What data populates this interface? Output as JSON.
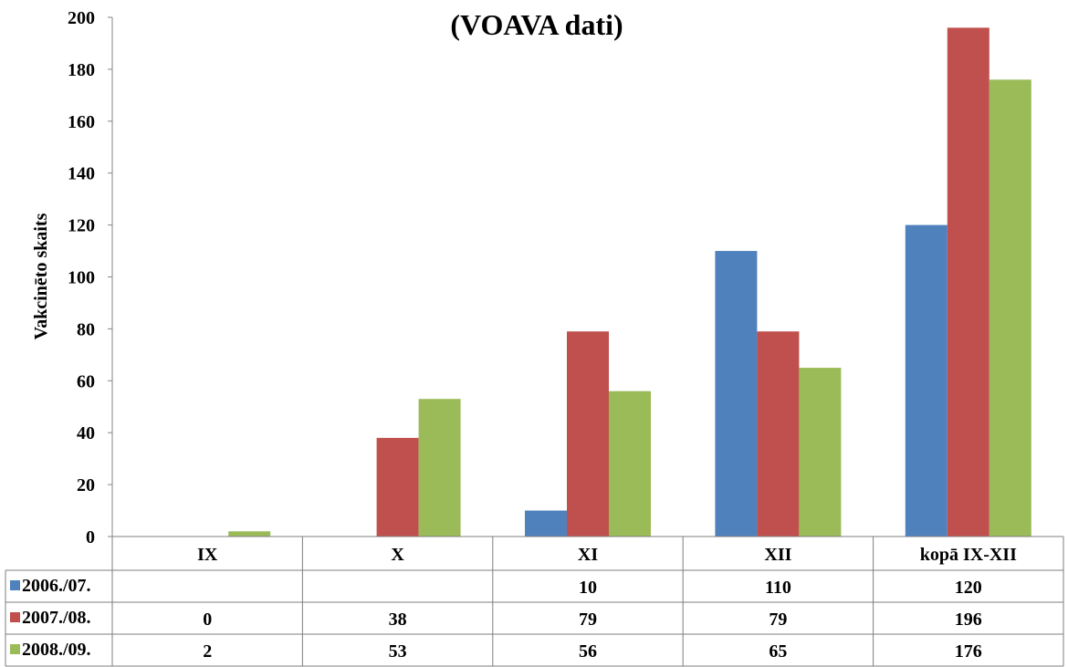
{
  "chart_data": {
    "type": "bar",
    "title_lines": [
      "",
      "(VOAVA dati)"
    ],
    "ylabel": "Vakcinēto skaits",
    "xlabel": "",
    "ylim": [
      0,
      200
    ],
    "yticks": [
      0,
      20,
      40,
      60,
      80,
      100,
      120,
      140,
      160,
      180,
      200
    ],
    "grid": false,
    "legend": "table-below",
    "categories": [
      "IX",
      "X",
      "XI",
      "XII",
      "kopā IX-XII"
    ],
    "series": [
      {
        "name": "2006./07.",
        "color": "#4f81bd",
        "values": [
          null,
          null,
          10,
          110,
          120
        ],
        "labels": [
          "",
          "",
          "10",
          "110",
          "120"
        ]
      },
      {
        "name": "2007./08.",
        "color": "#c0504d",
        "values": [
          0,
          38,
          79,
          79,
          196
        ],
        "labels": [
          "0",
          "38",
          "79",
          "79",
          "196"
        ]
      },
      {
        "name": "2008./09.",
        "color": "#9bbb59",
        "values": [
          2,
          53,
          56,
          65,
          176
        ],
        "labels": [
          "2",
          "53",
          "56",
          "65",
          "176"
        ]
      }
    ]
  }
}
